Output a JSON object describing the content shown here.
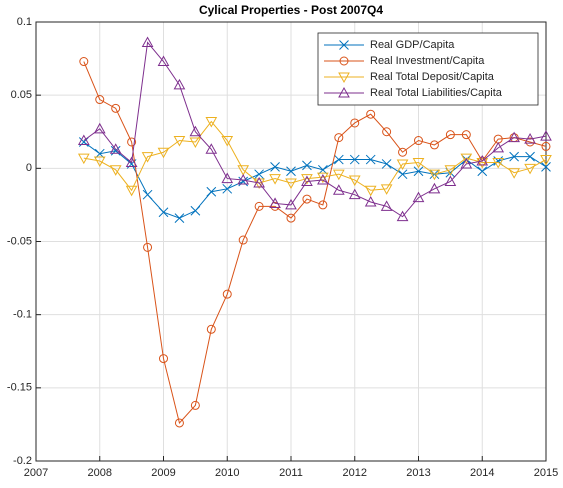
{
  "chart_data": {
    "type": "line",
    "title": "Cylical Properties - Post 2007Q4",
    "x": [
      2007.75,
      2008,
      2008.25,
      2008.5,
      2008.75,
      2009,
      2009.25,
      2009.5,
      2009.75,
      2010,
      2010.25,
      2010.5,
      2010.75,
      2011,
      2011.25,
      2011.5,
      2011.75,
      2012,
      2012.25,
      2012.5,
      2012.75,
      2013,
      2013.25,
      2013.5,
      2013.75,
      2014,
      2014.25,
      2014.5,
      2014.75,
      2015
    ],
    "series": [
      {
        "name": "Real GDP/Capita",
        "color": "#0072bd",
        "marker": "x",
        "values": [
          0.018,
          0.01,
          0.012,
          0.003,
          -0.018,
          -0.03,
          -0.034,
          -0.029,
          -0.016,
          -0.014,
          -0.009,
          -0.004,
          0.001,
          -0.002,
          0.002,
          -0.001,
          0.006,
          0.006,
          0.006,
          0.003,
          -0.004,
          -0.002,
          -0.004,
          -0.003,
          0.006,
          -0.002,
          0.005,
          0.008,
          0.008,
          0.001
        ]
      },
      {
        "name": "Real Investment/Capita",
        "color": "#d95319",
        "marker": "o",
        "values": [
          0.073,
          0.047,
          0.041,
          0.018,
          -0.054,
          -0.13,
          -0.174,
          -0.162,
          -0.11,
          -0.086,
          -0.049,
          -0.026,
          -0.026,
          -0.034,
          -0.021,
          -0.025,
          0.021,
          0.031,
          0.037,
          0.025,
          0.011,
          0.019,
          0.016,
          0.023,
          0.023,
          0.005,
          0.02,
          0.021,
          0.018,
          0.015
        ]
      },
      {
        "name": "Real Total Deposit/Capita",
        "color": "#edb120",
        "marker": "v",
        "values": [
          0.007,
          0.005,
          -0.001,
          -0.015,
          0.008,
          0.011,
          0.019,
          0.018,
          0.032,
          0.019,
          -0.001,
          -0.01,
          -0.007,
          -0.01,
          -0.007,
          -0.006,
          -0.004,
          -0.008,
          -0.015,
          -0.014,
          0.003,
          0.004,
          -0.004,
          -0.001,
          0.007,
          0.004,
          0.004,
          -0.003,
          0.0,
          0.006
        ]
      },
      {
        "name": "Real Total Liabilities/Capita",
        "color": "#7e2f8e",
        "marker": "^",
        "values": [
          0.019,
          0.027,
          0.013,
          0.004,
          0.086,
          0.073,
          0.057,
          0.025,
          0.013,
          -0.007,
          -0.008,
          -0.01,
          -0.024,
          -0.025,
          -0.009,
          -0.008,
          -0.015,
          -0.018,
          -0.023,
          -0.026,
          -0.033,
          -0.02,
          -0.014,
          -0.009,
          0.003,
          0.005,
          0.014,
          0.021,
          0.02,
          0.022
        ]
      }
    ],
    "xlim": [
      2007,
      2015
    ],
    "xticks": [
      2007,
      2008,
      2009,
      2010,
      2011,
      2012,
      2013,
      2014,
      2015
    ],
    "ylim": [
      -0.2,
      0.1
    ],
    "yticks": [
      -0.2,
      -0.15,
      -0.1,
      -0.05,
      0,
      0.05,
      0.1
    ],
    "grid": true,
    "legend": "northeast"
  }
}
